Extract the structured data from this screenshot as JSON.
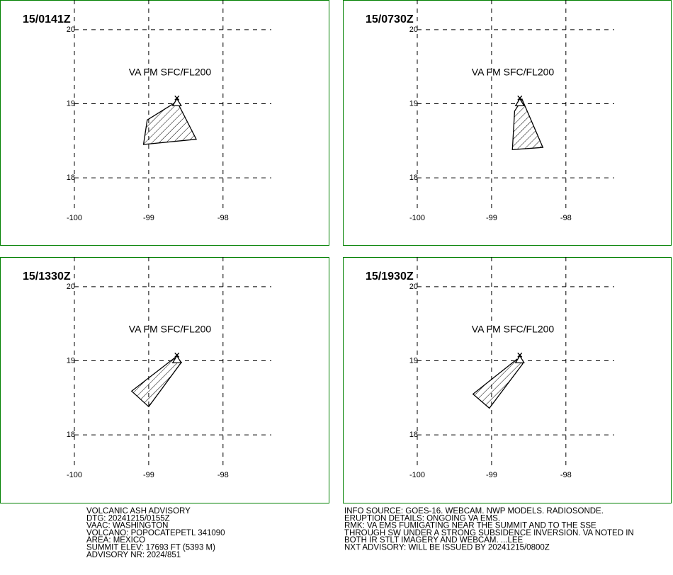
{
  "map": {
    "xlim": [
      -100,
      -97.35
    ],
    "ylim": [
      17.58,
      20.4
    ],
    "lonticks": [
      -100,
      -99,
      -98
    ],
    "latticks": [
      20,
      19,
      18
    ],
    "volcano": [
      -98.62,
      19.02
    ]
  },
  "panels": [
    {
      "time": "15/0141Z",
      "level": "VA FM SFC/FL200",
      "ash_polygon": [
        [
          -99.02,
          18.78
        ],
        [
          -98.62,
          19.03
        ],
        [
          -98.36,
          18.52
        ],
        [
          -99.07,
          18.45
        ]
      ]
    },
    {
      "time": "15/0730Z",
      "level": "VA FM SFC/FL200",
      "ash_polygon": [
        [
          -98.69,
          18.9
        ],
        [
          -98.59,
          19.06
        ],
        [
          -98.31,
          18.41
        ],
        [
          -98.72,
          18.38
        ]
      ]
    },
    {
      "time": "15/1330Z",
      "level": "VA FM SFC/FL200",
      "ash_polygon": [
        [
          -99.23,
          18.59
        ],
        [
          -98.65,
          19.04
        ],
        [
          -98.56,
          18.98
        ],
        [
          -99.0,
          18.38
        ]
      ]
    },
    {
      "time": "15/1930Z",
      "level": "VA FM SFC/FL200",
      "ash_polygon": [
        [
          -99.25,
          18.55
        ],
        [
          -98.66,
          19.02
        ],
        [
          -98.58,
          18.96
        ],
        [
          -99.03,
          18.36
        ]
      ]
    }
  ],
  "advisory_left": [
    "VOLCANIC ASH ADVISORY",
    "DTG: 20241215/0155Z",
    "VAAC: WASHINGTON",
    "VOLCANO: POPOCATEPETL 341090",
    "AREA: MEXICO",
    "SUMMIT ELEV: 17693 FT (5393 M)",
    "ADVISORY NR: 2024/851"
  ],
  "advisory_right": [
    "INFO SOURCE: GOES-16. WEBCAM. NWP MODELS. RADIOSONDE.",
    "ERUPTION DETAILS: ONGOING VA EMS.",
    "RMK: VA EMS FUMIGATING NEAR THE SUMMIT AND TO THE SSE",
    "THROUGH SW UNDER A STRONG SUBSIDENCE INVERSION. VA NOTED IN",
    "BOTH IR STLT IMAGERY AND WEBCAM. ...LEE",
    "NXT ADVISORY: WILL BE ISSUED BY 20241215/0800Z"
  ]
}
